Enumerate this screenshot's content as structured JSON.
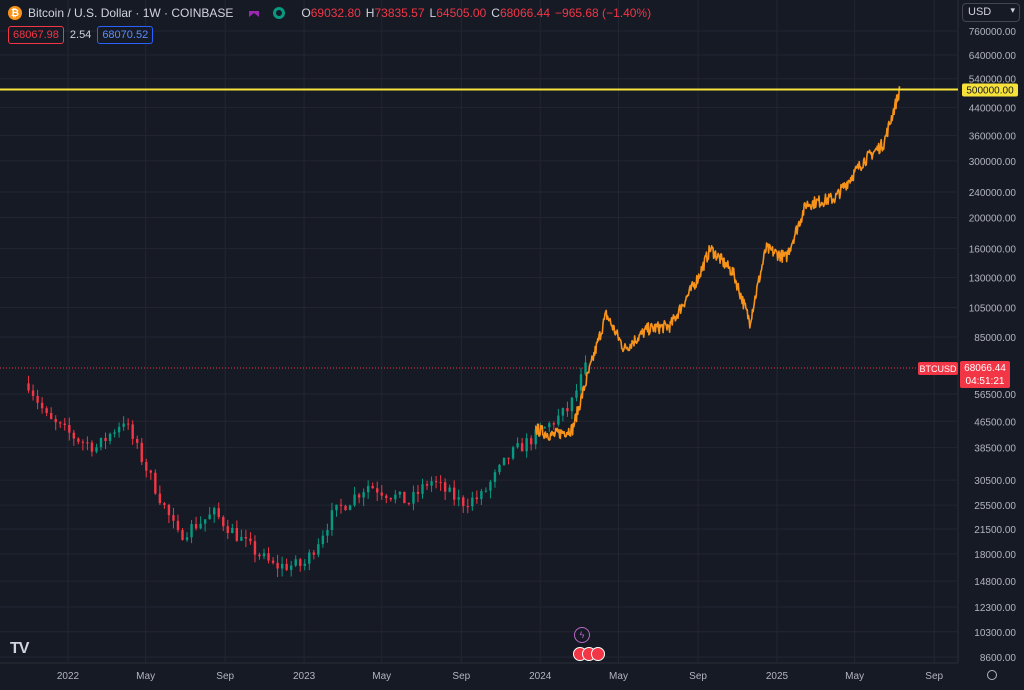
{
  "header": {
    "title": "Bitcoin / U.S. Dollar · 1W · COINBASE",
    "ohlc": [
      {
        "k": "O",
        "v": "69032.80"
      },
      {
        "k": "H",
        "v": "73835.57"
      },
      {
        "k": "L",
        "v": "64505.00"
      },
      {
        "k": "C",
        "v": "68066.44"
      }
    ],
    "change": "−965.68 (−1.40%)",
    "bid": "68067.98",
    "spread": "2.54",
    "ask": "68070.52"
  },
  "currency": {
    "label": "USD"
  },
  "colors": {
    "background": "#161a25",
    "up": "#089981",
    "down": "#f23645",
    "projection": "#f7931a",
    "target_line": "#f7e23a",
    "grid": "#232632"
  },
  "icons": {
    "coin": "bitcoin-icon",
    "flag": "flag-icon",
    "status": "market-open-icon",
    "events": "lightning-icon",
    "news": "us-flag-icon",
    "settings": "gear-icon"
  },
  "watermark": "TV",
  "chart_data": {
    "type": "candlestick",
    "log_scale": true,
    "ylim": [
      8000,
      900000
    ],
    "y_ticks": [
      "760000.00",
      "640000.00",
      "540000.00",
      "440000.00",
      "360000.00",
      "300000.00",
      "240000.00",
      "200000.00",
      "160000.00",
      "130000.00",
      "105000.00",
      "85000.00",
      "56500.00",
      "46500.00",
      "38500.00",
      "30500.00",
      "25500.00",
      "21500.00",
      "18000.00",
      "14800.00",
      "12300.00",
      "10300.00",
      "8600.00"
    ],
    "x_ticks": [
      "2022",
      "May",
      "Sep",
      "2023",
      "May",
      "Sep",
      "2024",
      "May",
      "Sep",
      "2025",
      "May",
      "Sep"
    ],
    "target_level": {
      "value": 500000,
      "label": "500000.00"
    },
    "last_price": {
      "symbol": "BTCUSD",
      "value": 68066.44,
      "label": "68066.44",
      "countdown": "04:51:21"
    },
    "historical_close_path": [
      {
        "date": "2021-11-01",
        "price": 61000
      },
      {
        "date": "2021-12-01",
        "price": 47000
      },
      {
        "date": "2022-01-15",
        "price": 41000
      },
      {
        "date": "2022-02-15",
        "price": 38500
      },
      {
        "date": "2022-03-28",
        "price": 47000
      },
      {
        "date": "2022-05-09",
        "price": 31000
      },
      {
        "date": "2022-06-20",
        "price": 20500
      },
      {
        "date": "2022-08-15",
        "price": 24000
      },
      {
        "date": "2022-10-01",
        "price": 19500
      },
      {
        "date": "2022-11-14",
        "price": 16500
      },
      {
        "date": "2023-01-01",
        "price": 16600
      },
      {
        "date": "2023-02-15",
        "price": 24000
      },
      {
        "date": "2023-04-10",
        "price": 29500
      },
      {
        "date": "2023-06-12",
        "price": 26000
      },
      {
        "date": "2023-07-15",
        "price": 30500
      },
      {
        "date": "2023-09-01",
        "price": 26000
      },
      {
        "date": "2023-10-01",
        "price": 27000
      },
      {
        "date": "2023-11-15",
        "price": 36500
      },
      {
        "date": "2024-01-01",
        "price": 43000
      },
      {
        "date": "2024-02-15",
        "price": 51000
      },
      {
        "date": "2024-03-11",
        "price": 68066
      }
    ],
    "projection_path": [
      {
        "date": "2023-12-25",
        "price": 44000
      },
      {
        "date": "2024-01-20",
        "price": 42000
      },
      {
        "date": "2024-02-20",
        "price": 44000
      },
      {
        "date": "2024-03-10",
        "price": 60000
      },
      {
        "date": "2024-04-12",
        "price": 100000
      },
      {
        "date": "2024-05-10",
        "price": 78000
      },
      {
        "date": "2024-06-15",
        "price": 90000
      },
      {
        "date": "2024-07-20",
        "price": 92000
      },
      {
        "date": "2024-09-01",
        "price": 130000
      },
      {
        "date": "2024-09-20",
        "price": 160000
      },
      {
        "date": "2024-10-25",
        "price": 135000
      },
      {
        "date": "2024-11-20",
        "price": 95000
      },
      {
        "date": "2024-12-15",
        "price": 160000
      },
      {
        "date": "2025-01-15",
        "price": 150000
      },
      {
        "date": "2025-02-15",
        "price": 220000
      },
      {
        "date": "2025-04-01",
        "price": 230000
      },
      {
        "date": "2025-05-15",
        "price": 300000
      },
      {
        "date": "2025-06-15",
        "price": 340000
      },
      {
        "date": "2025-07-10",
        "price": 500000
      }
    ]
  }
}
